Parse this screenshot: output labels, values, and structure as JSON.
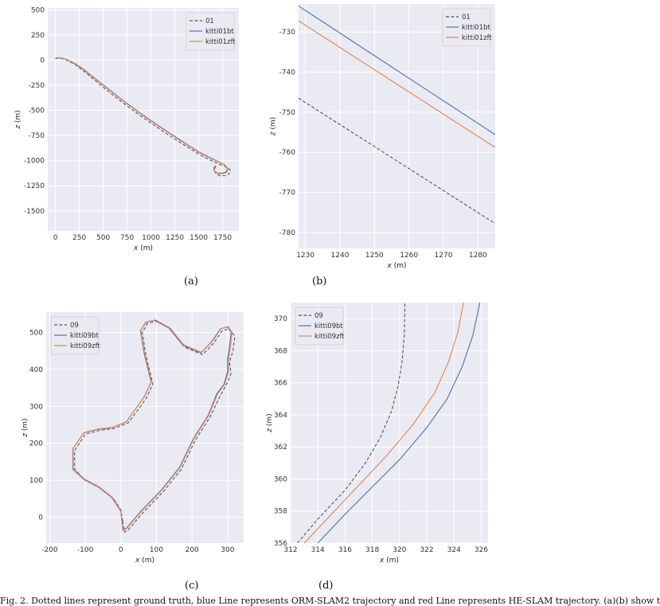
{
  "colors": {
    "panel_bg": "#eaeaf2",
    "grid": "#ffffff",
    "ground_truth": "#555555",
    "orb_slam2": "#4c72b0",
    "he_slam": "#dd8452"
  },
  "panel_labels": [
    "(a)",
    "(b)",
    "(c)",
    "(d)"
  ],
  "caption": "Fig. 2. Dotted lines represent ground truth, blue Line represents ORM-SLAM2 trajectory and red Line represents HE-SLAM trajectory. (a)(b) show t",
  "chart_data": [
    {
      "type": "line",
      "xlabel": "x (m)",
      "ylabel": "z (m)",
      "xlim": [
        -80,
        1920
      ],
      "ylim": [
        -1700,
        520
      ],
      "xticks": [
        0,
        250,
        500,
        750,
        1000,
        1250,
        1500,
        1750
      ],
      "yticks": [
        500,
        250,
        0,
        -250,
        -500,
        -750,
        -1000,
        -1250,
        -1500
      ],
      "legend_position": "upper right",
      "series": [
        {
          "name": "01",
          "style": "dashed",
          "color": "#555555",
          "points": [
            [
              0,
              15
            ],
            [
              30,
              20
            ],
            [
              100,
              10
            ],
            [
              200,
              -40
            ],
            [
              300,
              -110
            ],
            [
              400,
              -190
            ],
            [
              500,
              -270
            ],
            [
              600,
              -345
            ],
            [
              700,
              -420
            ],
            [
              800,
              -490
            ],
            [
              900,
              -560
            ],
            [
              1000,
              -625
            ],
            [
              1100,
              -690
            ],
            [
              1200,
              -755
            ],
            [
              1300,
              -815
            ],
            [
              1400,
              -875
            ],
            [
              1500,
              -935
            ],
            [
              1600,
              -985
            ],
            [
              1700,
              -1030
            ],
            [
              1780,
              -1060
            ],
            [
              1830,
              -1090
            ],
            [
              1820,
              -1130
            ],
            [
              1780,
              -1150
            ],
            [
              1720,
              -1150
            ],
            [
              1680,
              -1130
            ],
            [
              1660,
              -1090
            ],
            [
              1680,
              -1060
            ]
          ]
        },
        {
          "name": "kitti01bt",
          "style": "solid",
          "color": "#4c72b0",
          "points": [
            [
              0,
              20
            ],
            [
              30,
              25
            ],
            [
              100,
              15
            ],
            [
              200,
              -30
            ],
            [
              300,
              -95
            ],
            [
              400,
              -170
            ],
            [
              500,
              -245
            ],
            [
              600,
              -320
            ],
            [
              700,
              -395
            ],
            [
              800,
              -465
            ],
            [
              900,
              -535
            ],
            [
              1000,
              -600
            ],
            [
              1100,
              -665
            ],
            [
              1200,
              -728
            ],
            [
              1300,
              -790
            ],
            [
              1400,
              -852
            ],
            [
              1500,
              -912
            ],
            [
              1600,
              -962
            ],
            [
              1700,
              -1008
            ],
            [
              1770,
              -1040
            ],
            [
              1800,
              -1075
            ],
            [
              1790,
              -1110
            ],
            [
              1750,
              -1125
            ],
            [
              1700,
              -1125
            ],
            [
              1665,
              -1105
            ],
            [
              1655,
              -1075
            ],
            [
              1675,
              -1050
            ]
          ]
        },
        {
          "name": "kitti01zft",
          "style": "solid",
          "color": "#dd8452",
          "points": [
            [
              0,
              20
            ],
            [
              30,
              25
            ],
            [
              100,
              15
            ],
            [
              200,
              -33
            ],
            [
              300,
              -100
            ],
            [
              400,
              -175
            ],
            [
              500,
              -250
            ],
            [
              600,
              -325
            ],
            [
              700,
              -400
            ],
            [
              800,
              -470
            ],
            [
              900,
              -540
            ],
            [
              1000,
              -605
            ],
            [
              1100,
              -670
            ],
            [
              1200,
              -733
            ],
            [
              1300,
              -795
            ],
            [
              1400,
              -857
            ],
            [
              1500,
              -917
            ],
            [
              1600,
              -967
            ],
            [
              1700,
              -1012
            ],
            [
              1775,
              -1044
            ],
            [
              1805,
              -1080
            ],
            [
              1795,
              -1115
            ],
            [
              1755,
              -1130
            ],
            [
              1705,
              -1130
            ],
            [
              1668,
              -1110
            ],
            [
              1657,
              -1080
            ],
            [
              1677,
              -1054
            ]
          ]
        }
      ]
    },
    {
      "type": "line",
      "xlabel": "x (m)",
      "ylabel": "z (m)",
      "xlim": [
        1228,
        1285
      ],
      "ylim": [
        -784,
        -723
      ],
      "xticks": [
        1230,
        1240,
        1250,
        1260,
        1270,
        1280
      ],
      "yticks": [
        -730,
        -740,
        -750,
        -760,
        -770,
        -780
      ],
      "legend_position": "upper right",
      "series": [
        {
          "name": "01",
          "style": "dashed",
          "color": "#555555",
          "points": [
            [
              1228,
              -746.5
            ],
            [
              1285,
              -777.8
            ]
          ]
        },
        {
          "name": "kitti01bt",
          "style": "solid",
          "color": "#4c72b0",
          "points": [
            [
              1228,
              -723.5
            ],
            [
              1285,
              -755.6
            ]
          ]
        },
        {
          "name": "kitti01zft",
          "style": "solid",
          "color": "#dd8452",
          "points": [
            [
              1228,
              -727.2
            ],
            [
              1285,
              -758.8
            ]
          ]
        }
      ]
    },
    {
      "type": "line",
      "xlabel": "x (m)",
      "ylabel": "z (m)",
      "xlim": [
        -210,
        345
      ],
      "ylim": [
        -70,
        555
      ],
      "xticks": [
        -200,
        -100,
        0,
        100,
        200,
        300
      ],
      "yticks": [
        0,
        100,
        200,
        300,
        400,
        500
      ],
      "legend_position": "upper left",
      "series": [
        {
          "name": "09",
          "style": "dashed",
          "color": "#555555",
          "points": [
            [
              5,
              -10
            ],
            [
              10,
              -40
            ],
            [
              20,
              -35
            ],
            [
              60,
              10
            ],
            [
              120,
              70
            ],
            [
              170,
              130
            ],
            [
              210,
              210
            ],
            [
              250,
              270
            ],
            [
              280,
              330
            ],
            [
              300,
              365
            ],
            [
              310,
              390
            ],
            [
              305,
              420
            ],
            [
              315,
              450
            ],
            [
              320,
              490
            ],
            [
              305,
              510
            ],
            [
              285,
              505
            ],
            [
              260,
              470
            ],
            [
              230,
              440
            ],
            [
              180,
              460
            ],
            [
              140,
              510
            ],
            [
              100,
              530
            ],
            [
              75,
              525
            ],
            [
              60,
              500
            ],
            [
              70,
              440
            ],
            [
              90,
              360
            ],
            [
              70,
              320
            ],
            [
              40,
              280
            ],
            [
              20,
              255
            ],
            [
              -20,
              240
            ],
            [
              -60,
              235
            ],
            [
              -100,
              225
            ],
            [
              -130,
              180
            ],
            [
              -130,
              130
            ],
            [
              -100,
              100
            ],
            [
              -60,
              80
            ],
            [
              -20,
              50
            ],
            [
              0,
              20
            ],
            [
              5,
              -10
            ]
          ]
        },
        {
          "name": "kitti09bt",
          "style": "solid",
          "color": "#4c72b0",
          "points": [
            [
              0,
              15
            ],
            [
              5,
              -35
            ],
            [
              15,
              -30
            ],
            [
              55,
              15
            ],
            [
              115,
              75
            ],
            [
              165,
              135
            ],
            [
              205,
              215
            ],
            [
              245,
              275
            ],
            [
              270,
              335
            ],
            [
              290,
              360
            ],
            [
              300,
              395
            ],
            [
              300,
              430
            ],
            [
              305,
              460
            ],
            [
              310,
              500
            ],
            [
              300,
              515
            ],
            [
              280,
              510
            ],
            [
              255,
              475
            ],
            [
              225,
              445
            ],
            [
              175,
              465
            ],
            [
              135,
              512
            ],
            [
              95,
              533
            ],
            [
              70,
              528
            ],
            [
              55,
              505
            ],
            [
              65,
              445
            ],
            [
              85,
              365
            ],
            [
              65,
              325
            ],
            [
              35,
              285
            ],
            [
              15,
              258
            ],
            [
              -25,
              242
            ],
            [
              -65,
              238
            ],
            [
              -105,
              228
            ],
            [
              -135,
              185
            ],
            [
              -135,
              130
            ],
            [
              -105,
              103
            ],
            [
              -65,
              83
            ],
            [
              -25,
              53
            ],
            [
              -5,
              23
            ],
            [
              0,
              15
            ]
          ]
        },
        {
          "name": "kitti09zft",
          "style": "solid",
          "color": "#dd8452",
          "points": [
            [
              0,
              15
            ],
            [
              5,
              -36
            ],
            [
              16,
              -31
            ],
            [
              56,
              14
            ],
            [
              116,
              74
            ],
            [
              166,
              134
            ],
            [
              206,
              214
            ],
            [
              246,
              274
            ],
            [
              272,
              334
            ],
            [
              292,
              360
            ],
            [
              303,
              395
            ],
            [
              303,
              430
            ],
            [
              308,
              460
            ],
            [
              312,
              500
            ],
            [
              302,
              516
            ],
            [
              282,
              511
            ],
            [
              257,
              476
            ],
            [
              227,
              446
            ],
            [
              177,
              466
            ],
            [
              137,
              513
            ],
            [
              97,
              534
            ],
            [
              72,
              529
            ],
            [
              56,
              506
            ],
            [
              66,
              446
            ],
            [
              86,
              366
            ],
            [
              66,
              326
            ],
            [
              36,
              286
            ],
            [
              16,
              259
            ],
            [
              -24,
              243
            ],
            [
              -64,
              239
            ],
            [
              -104,
              229
            ],
            [
              -134,
              186
            ],
            [
              -134,
              131
            ],
            [
              -104,
              104
            ],
            [
              -64,
              84
            ],
            [
              -24,
              54
            ],
            [
              -4,
              24
            ],
            [
              0,
              15
            ]
          ]
        }
      ]
    },
    {
      "type": "line",
      "xlabel": "x (m)",
      "ylabel": "z (m)",
      "xlim": [
        312,
        326.5
      ],
      "ylim": [
        356,
        371
      ],
      "xticks": [
        312,
        314,
        316,
        318,
        320,
        322,
        324,
        326
      ],
      "yticks": [
        356,
        358,
        360,
        362,
        364,
        366,
        368,
        370
      ],
      "legend_position": "upper left",
      "series": [
        {
          "name": "09",
          "style": "dashed",
          "color": "#555555",
          "points": [
            [
              312.5,
              356
            ],
            [
              314,
              357.5
            ],
            [
              316,
              359.3
            ],
            [
              317.5,
              361
            ],
            [
              318.6,
              362.6
            ],
            [
              319.4,
              364.2
            ],
            [
              319.9,
              365.8
            ],
            [
              320.2,
              367.4
            ],
            [
              320.35,
              369
            ],
            [
              320.4,
              371
            ]
          ]
        },
        {
          "name": "kitti09bt",
          "style": "solid",
          "color": "#4c72b0",
          "points": [
            [
              314,
              356
            ],
            [
              316,
              357.8
            ],
            [
              318,
              359.5
            ],
            [
              320,
              361.2
            ],
            [
              322,
              363.2
            ],
            [
              323.5,
              365
            ],
            [
              324.6,
              367
            ],
            [
              325.4,
              369
            ],
            [
              325.9,
              371
            ]
          ]
        },
        {
          "name": "kitti09zft",
          "style": "solid",
          "color": "#dd8452",
          "points": [
            [
              313,
              356
            ],
            [
              315,
              357.8
            ],
            [
              317,
              359.6
            ],
            [
              319,
              361.4
            ],
            [
              321,
              363.4
            ],
            [
              322.6,
              365.4
            ],
            [
              323.6,
              367.3
            ],
            [
              324.3,
              369.2
            ],
            [
              324.7,
              371
            ]
          ]
        }
      ]
    }
  ]
}
